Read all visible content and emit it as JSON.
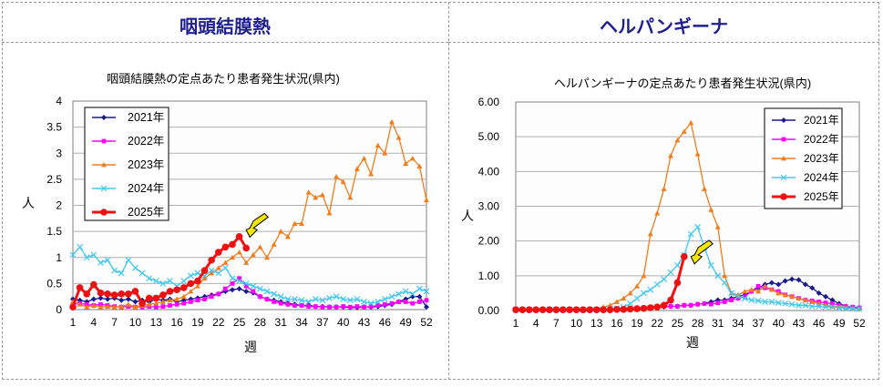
{
  "panels": [
    {
      "heading": "咽頭結膜熱"
    },
    {
      "heading": "ヘルパンギーナ"
    }
  ],
  "chart_data": [
    {
      "type": "line",
      "title": "咽頭結膜熱の定点あたり患者発生状況(県内)",
      "xlabel": "週",
      "ylabel": "人",
      "ylim": [
        0,
        4
      ],
      "yticks": [
        "0",
        "0.5",
        "1",
        "1.5",
        "2",
        "2.5",
        "3",
        "3.5",
        "4"
      ],
      "xticks": [
        "1",
        "4",
        "7",
        "10",
        "13",
        "16",
        "19",
        "22",
        "25",
        "28",
        "31",
        "34",
        "37",
        "40",
        "43",
        "46",
        "49",
        "52"
      ],
      "grid": true,
      "legend_position": "top-left",
      "arrow_week": 26,
      "series": [
        {
          "name": "2021年",
          "color": "#1a1a8c",
          "marker": "diamond",
          "values": [
            0.2,
            0.18,
            0.15,
            0.2,
            0.22,
            0.2,
            0.22,
            0.18,
            0.2,
            0.15,
            0.18,
            0.15,
            0.2,
            0.18,
            0.2,
            0.15,
            0.18,
            0.2,
            0.22,
            0.25,
            0.28,
            0.3,
            0.35,
            0.38,
            0.4,
            0.35,
            0.32,
            0.25,
            0.2,
            0.18,
            0.15,
            0.12,
            0.1,
            0.08,
            0.08,
            0.06,
            0.06,
            0.05,
            0.05,
            0.05,
            0.04,
            0.04,
            0.05,
            0.05,
            0.06,
            0.08,
            0.1,
            0.15,
            0.2,
            0.25,
            0.25,
            0.05
          ]
        },
        {
          "name": "2022年",
          "color": "#ff00ff",
          "marker": "square",
          "values": [
            0.1,
            0.12,
            0.1,
            0.08,
            0.1,
            0.08,
            0.06,
            0.05,
            0.06,
            0.05,
            0.05,
            0.06,
            0.05,
            0.06,
            0.08,
            0.1,
            0.12,
            0.15,
            0.18,
            0.2,
            0.25,
            0.3,
            0.4,
            0.5,
            0.6,
            0.45,
            0.35,
            0.25,
            0.2,
            0.15,
            0.12,
            0.1,
            0.08,
            0.08,
            0.06,
            0.06,
            0.05,
            0.05,
            0.05,
            0.06,
            0.05,
            0.06,
            0.05,
            0.06,
            0.08,
            0.1,
            0.12,
            0.15,
            0.15,
            0.12,
            0.15,
            0.18
          ]
        },
        {
          "name": "2023年",
          "color": "#f07d1a",
          "marker": "triangle",
          "values": [
            0.15,
            0.1,
            0.05,
            0.08,
            0.05,
            0.06,
            0.05,
            0.06,
            0.1,
            0.05,
            0.08,
            0.1,
            0.12,
            0.15,
            0.18,
            0.2,
            0.25,
            0.35,
            0.45,
            0.6,
            0.7,
            0.8,
            0.9,
            1.0,
            1.1,
            0.9,
            1.05,
            1.2,
            1.0,
            1.25,
            1.5,
            1.4,
            1.65,
            1.65,
            2.25,
            2.15,
            2.2,
            1.85,
            2.55,
            2.45,
            2.15,
            2.7,
            2.9,
            2.6,
            3.15,
            3.0,
            3.6,
            3.3,
            2.8,
            2.9,
            2.75,
            2.1
          ]
        },
        {
          "name": "2024年",
          "color": "#40c8f0",
          "marker": "x",
          "values": [
            1.05,
            1.2,
            1.0,
            1.05,
            0.9,
            0.95,
            0.75,
            0.7,
            0.95,
            0.8,
            0.7,
            0.6,
            0.55,
            0.5,
            0.55,
            0.45,
            0.55,
            0.65,
            0.7,
            0.65,
            0.75,
            0.7,
            0.8,
            0.6,
            0.55,
            0.5,
            0.45,
            0.4,
            0.35,
            0.3,
            0.25,
            0.2,
            0.2,
            0.18,
            0.15,
            0.2,
            0.18,
            0.22,
            0.25,
            0.2,
            0.18,
            0.2,
            0.15,
            0.12,
            0.15,
            0.2,
            0.25,
            0.3,
            0.35,
            0.3,
            0.4,
            0.35
          ]
        },
        {
          "name": "2025年",
          "color": "#ee1111",
          "marker": "circle",
          "bold": true,
          "values": [
            0.05,
            0.42,
            0.3,
            0.48,
            0.32,
            0.3,
            0.28,
            0.3,
            0.3,
            0.35,
            0.12,
            0.22,
            0.22,
            0.28,
            0.35,
            0.38,
            0.42,
            0.5,
            0.55,
            0.75,
            0.95,
            1.1,
            1.2,
            1.25,
            1.4,
            1.18
          ]
        }
      ]
    },
    {
      "type": "line",
      "title": "ヘルパンギーナの定点あたり患者発生状況(県内)",
      "xlabel": "週",
      "ylabel": "人",
      "ylim": [
        0,
        6
      ],
      "yticks": [
        "0.00",
        "1.00",
        "2.00",
        "3.00",
        "4.00",
        "5.00",
        "6.00"
      ],
      "xticks": [
        "1",
        "4",
        "7",
        "10",
        "13",
        "16",
        "19",
        "22",
        "25",
        "28",
        "31",
        "34",
        "37",
        "40",
        "43",
        "46",
        "49",
        "52"
      ],
      "grid": true,
      "legend_position": "top-right",
      "arrow_week": 27,
      "series": [
        {
          "name": "2021年",
          "color": "#1a1a8c",
          "marker": "diamond",
          "values": [
            0.02,
            0.02,
            0.02,
            0.02,
            0.02,
            0.02,
            0.02,
            0.02,
            0.02,
            0.02,
            0.02,
            0.02,
            0.02,
            0.02,
            0.03,
            0.04,
            0.05,
            0.05,
            0.06,
            0.08,
            0.08,
            0.1,
            0.1,
            0.12,
            0.12,
            0.15,
            0.15,
            0.18,
            0.2,
            0.25,
            0.3,
            0.3,
            0.35,
            0.4,
            0.45,
            0.55,
            0.65,
            0.75,
            0.8,
            0.75,
            0.85,
            0.9,
            0.88,
            0.75,
            0.65,
            0.5,
            0.4,
            0.3,
            0.2,
            0.12,
            0.08,
            0.05
          ]
        },
        {
          "name": "2022年",
          "color": "#ff00ff",
          "marker": "square",
          "values": [
            0.02,
            0.02,
            0.02,
            0.02,
            0.02,
            0.02,
            0.02,
            0.02,
            0.02,
            0.02,
            0.03,
            0.03,
            0.03,
            0.04,
            0.05,
            0.05,
            0.06,
            0.07,
            0.08,
            0.08,
            0.08,
            0.1,
            0.12,
            0.12,
            0.12,
            0.15,
            0.15,
            0.18,
            0.2,
            0.18,
            0.22,
            0.25,
            0.3,
            0.35,
            0.4,
            0.55,
            0.7,
            0.65,
            0.6,
            0.55,
            0.45,
            0.4,
            0.35,
            0.3,
            0.28,
            0.25,
            0.22,
            0.2,
            0.15,
            0.12,
            0.1,
            0.08
          ]
        },
        {
          "name": "2023年",
          "color": "#f07d1a",
          "marker": "triangle",
          "values": [
            0.02,
            0.02,
            0.02,
            0.02,
            0.02,
            0.02,
            0.02,
            0.02,
            0.02,
            0.02,
            0.03,
            0.04,
            0.05,
            0.1,
            0.15,
            0.25,
            0.35,
            0.5,
            0.7,
            1.0,
            2.2,
            2.8,
            3.5,
            4.45,
            4.9,
            5.15,
            5.4,
            4.5,
            3.5,
            2.9,
            2.4,
            1.0,
            0.5,
            0.45,
            0.55,
            0.6,
            0.55,
            0.7,
            0.6,
            0.5,
            0.45,
            0.4,
            0.35,
            0.3,
            0.25,
            0.2,
            0.15,
            0.12,
            0.1,
            0.08,
            0.06,
            0.05
          ]
        },
        {
          "name": "2024年",
          "color": "#40c8f0",
          "marker": "x",
          "values": [
            0.02,
            0.02,
            0.02,
            0.02,
            0.02,
            0.02,
            0.02,
            0.02,
            0.02,
            0.02,
            0.02,
            0.02,
            0.02,
            0.03,
            0.05,
            0.06,
            0.1,
            0.2,
            0.35,
            0.5,
            0.6,
            0.75,
            0.9,
            1.1,
            1.3,
            1.6,
            2.2,
            2.4,
            1.8,
            1.3,
            1.0,
            0.8,
            0.5,
            0.4,
            0.35,
            0.3,
            0.28,
            0.25,
            0.25,
            0.22,
            0.2,
            0.18,
            0.15,
            0.15,
            0.12,
            0.12,
            0.1,
            0.1,
            0.08,
            0.06,
            0.05,
            0.05
          ]
        },
        {
          "name": "2025年",
          "color": "#ee1111",
          "marker": "circle",
          "bold": true,
          "values": [
            0.02,
            0.02,
            0.02,
            0.02,
            0.02,
            0.02,
            0.02,
            0.02,
            0.02,
            0.02,
            0.02,
            0.02,
            0.02,
            0.02,
            0.02,
            0.03,
            0.03,
            0.04,
            0.05,
            0.06,
            0.08,
            0.1,
            0.15,
            0.3,
            0.8,
            1.55
          ]
        }
      ]
    }
  ]
}
